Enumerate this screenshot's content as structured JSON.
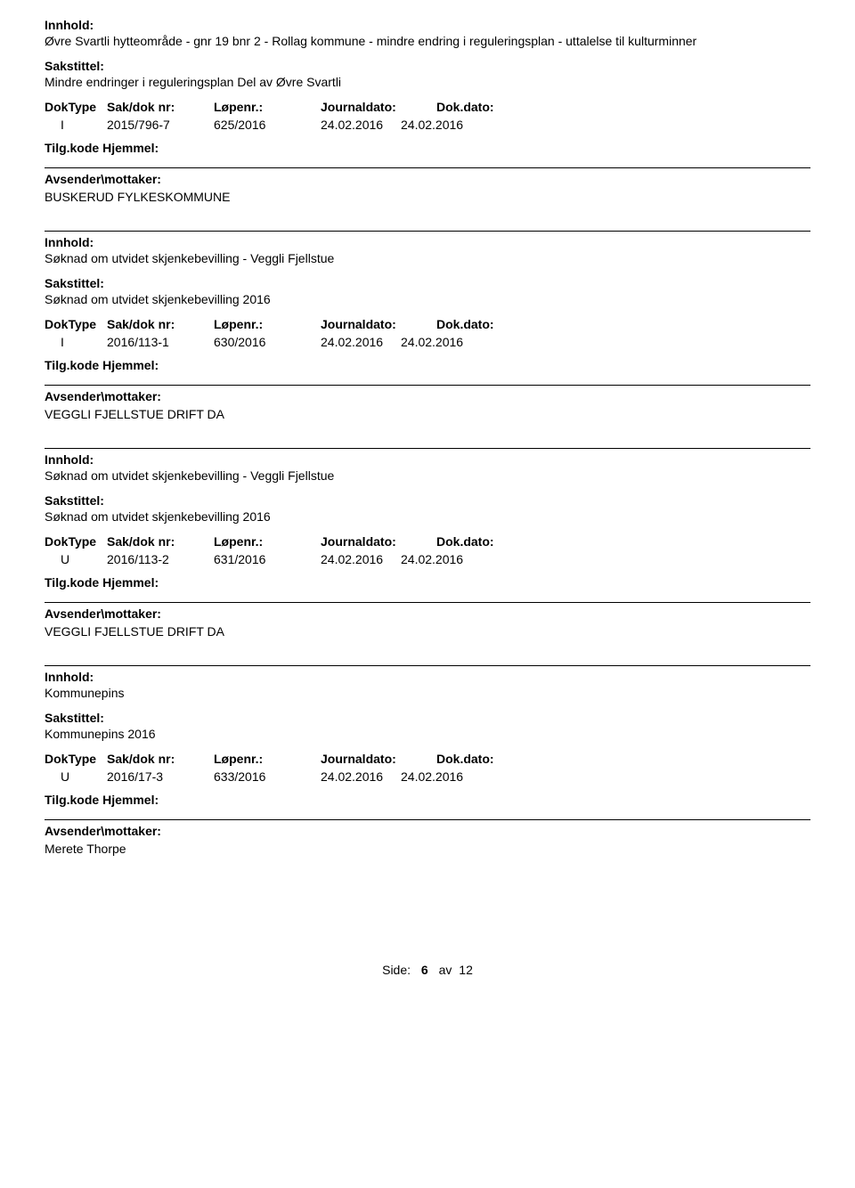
{
  "labels": {
    "innhold": "Innhold:",
    "sakstittel": "Sakstittel:",
    "doktype": "DokType",
    "saknr": "Sak/dok nr:",
    "lopenr": "Løpenr.:",
    "journaldato": "Journaldato:",
    "dokdato": "Dok.dato:",
    "tilgkode": "Tilg.kode",
    "hjemmel": "Hjemmel:",
    "avsender": "Avsender\\mottaker:"
  },
  "records": [
    {
      "innhold": "Øvre Svartli hytteområde - gnr 19 bnr 2 - Rollag kommune - mindre endring i reguleringsplan - uttalelse til kulturminner",
      "sakstittel": "Mindre endringer i reguleringsplan Del av Øvre Svartli",
      "doktype": "I",
      "saknr": "2015/796-7",
      "lopenr": "625/2016",
      "journaldato": "24.02.2016",
      "dokdato": "24.02.2016",
      "avsender": "BUSKERUD FYLKESKOMMUNE"
    },
    {
      "innhold": "Søknad om utvidet skjenkebevilling - Veggli Fjellstue",
      "sakstittel": "Søknad om utvidet skjenkebevilling 2016",
      "doktype": "I",
      "saknr": "2016/113-1",
      "lopenr": "630/2016",
      "journaldato": "24.02.2016",
      "dokdato": "24.02.2016",
      "avsender": "VEGGLI FJELLSTUE DRIFT DA"
    },
    {
      "innhold": "Søknad om utvidet skjenkebevilling - Veggli Fjellstue",
      "sakstittel": "Søknad om utvidet skjenkebevilling 2016",
      "doktype": "U",
      "saknr": "2016/113-2",
      "lopenr": "631/2016",
      "journaldato": "24.02.2016",
      "dokdato": "24.02.2016",
      "avsender": "VEGGLI FJELLSTUE DRIFT DA"
    },
    {
      "innhold": "Kommunepins",
      "sakstittel": "Kommunepins 2016",
      "doktype": "U",
      "saknr": "2016/17-3",
      "lopenr": "633/2016",
      "journaldato": "24.02.2016",
      "dokdato": "24.02.2016",
      "avsender": "Merete Thorpe"
    }
  ],
  "pagination": {
    "label": "Side:",
    "current": "6",
    "of": "av",
    "total": "12"
  }
}
